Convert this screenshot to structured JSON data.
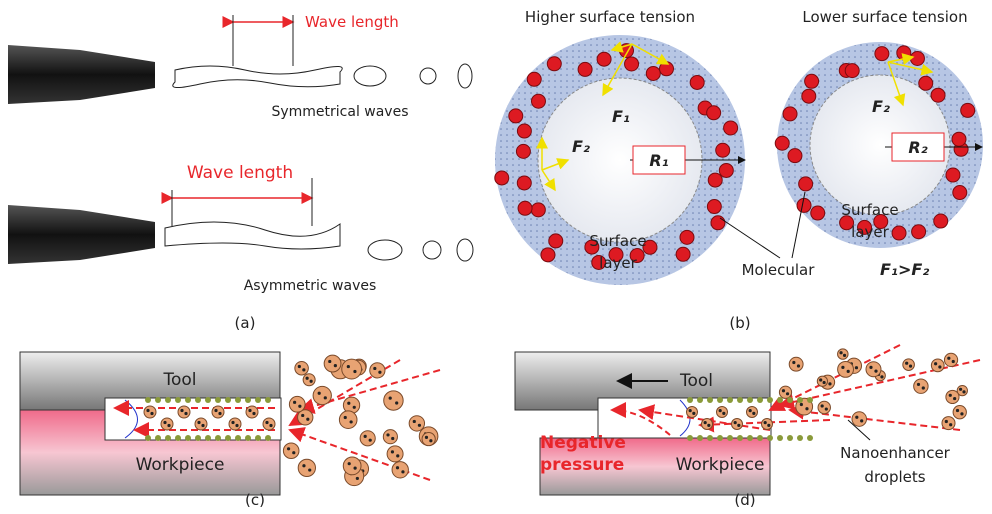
{
  "panel_a": {
    "label": "(a)",
    "symmetric": {
      "wave_label": "Wave length",
      "caption": "Symmetrical waves"
    },
    "asymmetric": {
      "wave_label": "Wave length",
      "caption": "Asymmetric waves"
    }
  },
  "panel_b": {
    "label": "(b)",
    "higher": {
      "title": "Higher surface tension",
      "force_1": "F₁",
      "force_2": "F₂",
      "radius": "R₁",
      "surface_layer": [
        "Surface",
        "layer"
      ]
    },
    "lower": {
      "title": "Lower surface tension",
      "force_2": "F₂",
      "radius": "R₂",
      "surface_layer": [
        "Surface",
        "layer"
      ]
    },
    "molecular": "Molecular",
    "inequality": "F₁>F₂"
  },
  "panel_c": {
    "label": "(c)",
    "tool": "Tool",
    "workpiece": "Workpiece"
  },
  "panel_d": {
    "label": "(d)",
    "tool": "Tool",
    "negative_pressure": [
      "Negative",
      "pressure"
    ],
    "workpiece": "Workpiece",
    "droplets": [
      "Nanoenhancer",
      "droplets"
    ]
  }
}
